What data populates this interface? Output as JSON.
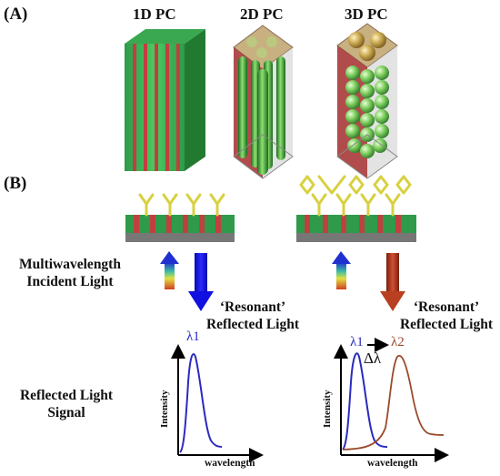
{
  "panel_a": {
    "label": "(A)",
    "structures": [
      {
        "title": "1D PC",
        "icon": "layered-slab-icon"
      },
      {
        "title": "2D PC",
        "icon": "rod-array-icon"
      },
      {
        "title": "3D PC",
        "icon": "sphere-lattice-icon"
      }
    ]
  },
  "panel_b": {
    "label": "(B)",
    "incident_label": [
      "Multiwavelength",
      "Incident Light"
    ],
    "reflected_label_left": [
      "‘Resonant’",
      "Reflected Light"
    ],
    "reflected_label_right": [
      "‘Resonant’",
      "Reflected Light"
    ],
    "signal_label": [
      "Reflected Light",
      "Signal"
    ],
    "graph_left": {
      "ylabel": "Intensity",
      "xlabel": "wavelength",
      "peak": "λ1"
    },
    "graph_right": {
      "ylabel": "Intensity",
      "xlabel": "wavelength",
      "peak1": "λ1",
      "peak2": "λ2",
      "shift": "Δλ"
    }
  },
  "colors": {
    "blue_arrow": "#1010e0",
    "red_arrow": "#b84020",
    "green_layer": "#2e9a4a",
    "red_layer": "#c03a3a",
    "antibody": "#d8d040",
    "curve_blue": "#2a2ac0",
    "curve_brown": "#9a4a2a"
  }
}
